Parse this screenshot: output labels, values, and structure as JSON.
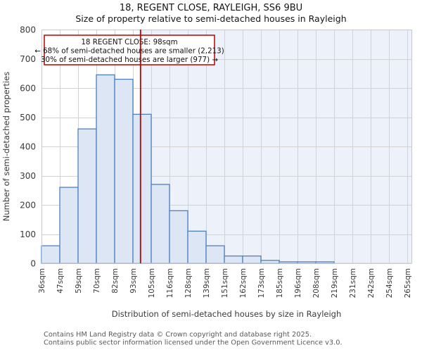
{
  "title": "18, REGENT CLOSE, RAYLEIGH, SS6 9BU",
  "subtitle": "Size of property relative to semi-detached houses in Rayleigh",
  "annotation": {
    "line1": "18 REGENT CLOSE: 98sqm",
    "line2": "← 68% of semi-detached houses are smaller (2,213)",
    "line3": "30% of semi-detached houses are larger (977) →"
  },
  "chart_data": {
    "type": "bar",
    "histogram": true,
    "bin_labels": [
      "36sqm",
      "47sqm",
      "59sqm",
      "70sqm",
      "82sqm",
      "93sqm",
      "105sqm",
      "116sqm",
      "128sqm",
      "139sqm",
      "151sqm",
      "162sqm",
      "173sqm",
      "185sqm",
      "196sqm",
      "208sqm",
      "219sqm",
      "231sqm",
      "242sqm",
      "254sqm",
      "265sqm"
    ],
    "values": [
      60,
      260,
      460,
      645,
      630,
      510,
      270,
      180,
      110,
      60,
      25,
      25,
      10,
      5,
      5,
      5,
      0,
      0,
      0,
      0
    ],
    "marker_sqm": 98,
    "xlabel": "Distribution of semi-detached houses by size in Rayleigh",
    "ylabel": "Number of semi-detached properties",
    "ylim": [
      0,
      800
    ],
    "ytick_step": 100,
    "grid": true,
    "colors": {
      "bar_fill": "#dce6f5",
      "bar_stroke": "#4f81bd",
      "marker_line": "#bb0000",
      "grid": "#d2d2d2",
      "border": "#c9c9c9",
      "tint": "#edf2fa",
      "annotation_border": "#bb0000",
      "annotation_bg": "#ffffff"
    }
  },
  "footer": {
    "line1": "Contains HM Land Registry data © Crown copyright and database right 2025.",
    "line2": "Contains public sector information licensed under the Open Government Licence v3.0."
  }
}
